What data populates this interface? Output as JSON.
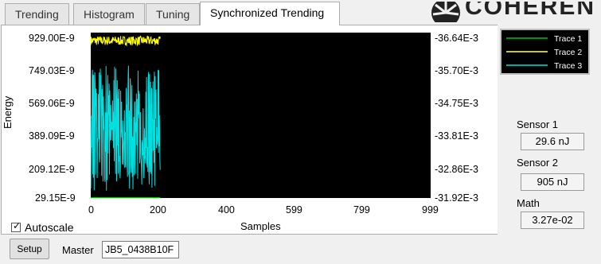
{
  "tabs": [
    {
      "label": "Trending"
    },
    {
      "label": "Histogram"
    },
    {
      "label": "Tuning"
    },
    {
      "label": "Synchronized Trending",
      "active": true
    }
  ],
  "brand": {
    "text": "COHERENT."
  },
  "chart_data": {
    "type": "line",
    "xlabel": "Samples",
    "ylabel": "Energy",
    "x_ticks": [
      "0",
      "200",
      "400",
      "599",
      "799",
      "999"
    ],
    "xlim": [
      0,
      999
    ],
    "y_ticks_left": [
      "929.00E-9",
      "749.03E-9",
      "569.06E-9",
      "389.09E-9",
      "209.12E-9",
      "29.15E-9"
    ],
    "ylim_left": [
      2.915e-08,
      9.29e-07
    ],
    "y_ticks_right": [
      "-36.64E-3",
      "-35.70E-3",
      "-34.75E-3",
      "-33.81E-3",
      "-32.86E-3",
      "-31.92E-3"
    ],
    "ylim_right": [
      -0.03192,
      -0.03664
    ],
    "legend_position": "top-right",
    "series": [
      {
        "name": "Trace 1",
        "color": "#00c800",
        "sample_count": 205,
        "value_range": [
          2.915e-08,
          2.915e-08
        ]
      },
      {
        "name": "Trace 2",
        "color": "#ffff00",
        "sample_count": 205,
        "value_range": [
          8.6e-07,
          9.1e-07
        ]
      },
      {
        "name": "Trace 3",
        "color": "#00e0e0",
        "sample_count": 205,
        "value_range": [
          2.915e-08,
          7.5e-07
        ]
      }
    ]
  },
  "autoscale": {
    "label": "Autoscale",
    "checked": true
  },
  "sensors": [
    {
      "label": "Sensor 1",
      "value": "29.6 nJ"
    },
    {
      "label": "Sensor 2",
      "value": "905 nJ"
    },
    {
      "label": "Math",
      "value": "3.27e-02"
    }
  ],
  "footer": {
    "setup_label": "Setup",
    "master_label": "Master",
    "master_value": "JB5_0438B10F"
  }
}
